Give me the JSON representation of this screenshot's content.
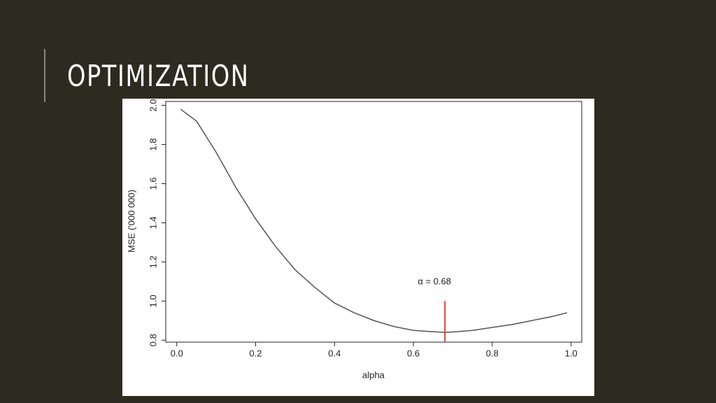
{
  "slide_title": "OPTIMIZATION",
  "chart_data": {
    "type": "line",
    "x_label": "alpha",
    "y_label": "MSE ('000 000)",
    "x": [
      0.01,
      0.05,
      0.1,
      0.15,
      0.2,
      0.25,
      0.3,
      0.35,
      0.4,
      0.45,
      0.5,
      0.55,
      0.6,
      0.65,
      0.68,
      0.7,
      0.75,
      0.8,
      0.85,
      0.9,
      0.95,
      0.99
    ],
    "values": [
      1.98,
      1.92,
      1.76,
      1.58,
      1.42,
      1.28,
      1.16,
      1.07,
      0.99,
      0.94,
      0.9,
      0.87,
      0.85,
      0.843,
      0.84,
      0.842,
      0.85,
      0.865,
      0.88,
      0.9,
      0.92,
      0.94
    ],
    "color": "#555555",
    "xlim": [
      -0.028,
      1.027
    ],
    "ylim": [
      0.79,
      2.02
    ],
    "xticks": [
      {
        "value": 0,
        "label": "0.0"
      },
      0.2,
      0.4,
      0.6,
      0.8,
      {
        "value": 1,
        "label": "1.0"
      }
    ],
    "yticks": [
      0.8,
      {
        "value": 1,
        "label": "1.0"
      },
      1.2,
      1.4,
      1.6,
      1.8,
      {
        "value": 2,
        "label": "2.0"
      }
    ],
    "marker": {
      "x": 0.68,
      "y": [
        0.79,
        1.0
      ],
      "color": "#e8392b",
      "label": "α = 0.68"
    }
  }
}
